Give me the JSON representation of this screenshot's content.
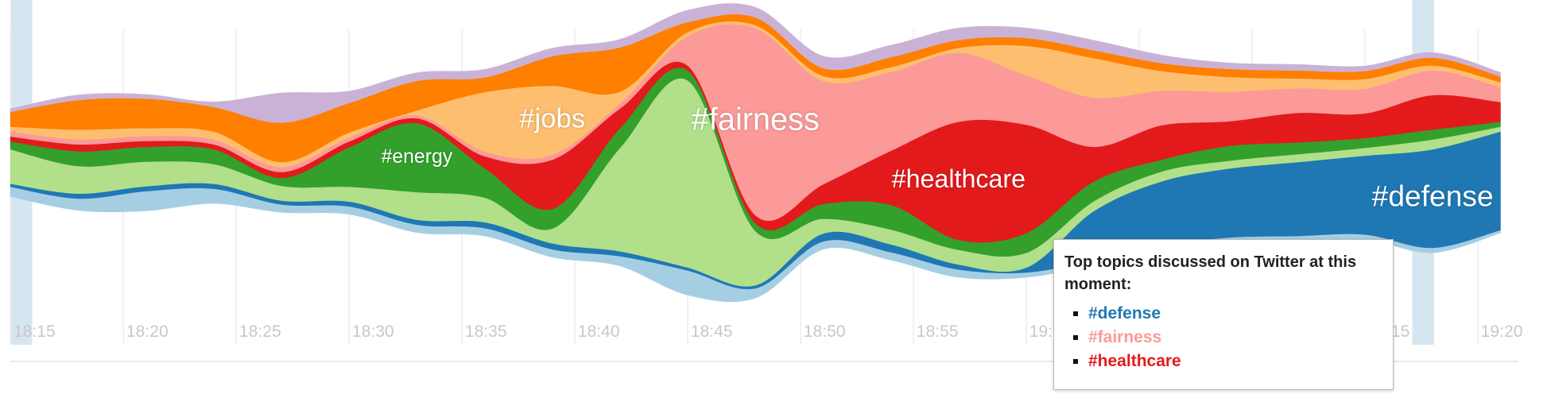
{
  "chart_data": {
    "type": "stream",
    "tooltip_title": "Top topics discussed on Twitter at this moment:",
    "x": [
      "18:15",
      "18:18",
      "18:21",
      "18:24",
      "18:27",
      "18:30",
      "18:33",
      "18:36",
      "18:39",
      "18:42",
      "18:45",
      "18:48",
      "18:51",
      "18:54",
      "18:57",
      "19:00",
      "19:03",
      "19:06",
      "19:09",
      "19:12",
      "19:15",
      "19:18",
      "19:21"
    ],
    "xticks": [
      "18:15",
      "18:20",
      "18:25",
      "18:30",
      "18:35",
      "18:40",
      "18:45",
      "18:50",
      "18:55",
      "19:00",
      "19:05",
      "19:10",
      "19:15",
      "19:20"
    ],
    "grid": true,
    "series": [
      {
        "color": "#a6cee3",
        "values": [
          10,
          12,
          20,
          15,
          8,
          8,
          8,
          8,
          8,
          10,
          25,
          10,
          8,
          8,
          8,
          5,
          5,
          5,
          5,
          5,
          5,
          5,
          3
        ]
      },
      {
        "name": "#defense",
        "color": "#1f78b4",
        "values": [
          3,
          5,
          5,
          5,
          4,
          5,
          5,
          6,
          6,
          5,
          3,
          3,
          8,
          8,
          5,
          5,
          50,
          65,
          70,
          75,
          80,
          100,
          100
        ]
      },
      {
        "color": "#b2df8a",
        "values": [
          35,
          28,
          25,
          20,
          15,
          15,
          28,
          25,
          15,
          105,
          190,
          55,
          15,
          15,
          15,
          15,
          10,
          10,
          8,
          8,
          8,
          10,
          5
        ]
      },
      {
        "name": "#energy",
        "color": "#33a02c",
        "values": [
          8,
          15,
          15,
          15,
          8,
          40,
          70,
          30,
          20,
          20,
          10,
          8,
          15,
          25,
          10,
          20,
          20,
          12,
          15,
          12,
          10,
          10,
          5
        ]
      },
      {
        "name": "#healthcare",
        "color": "#e31a1c",
        "values": [
          5,
          7,
          6,
          5,
          6,
          6,
          5,
          12,
          50,
          20,
          5,
          8,
          20,
          55,
          120,
          110,
          35,
          35,
          25,
          30,
          25,
          35,
          20
        ]
      },
      {
        "name": "#fairness",
        "color": "#fb9a99",
        "values": [
          5,
          5,
          5,
          5,
          5,
          4,
          3,
          5,
          5,
          5,
          30,
          190,
          105,
          80,
          70,
          50,
          50,
          35,
          30,
          25,
          25,
          25,
          15
        ]
      },
      {
        "name": "#jobs",
        "color": "#fdbf6f",
        "values": [
          5,
          10,
          8,
          8,
          5,
          5,
          5,
          60,
          70,
          12,
          4,
          3,
          5,
          5,
          5,
          30,
          40,
          20,
          15,
          10,
          10,
          5,
          5
        ]
      },
      {
        "color": "#ff7f00",
        "values": [
          15,
          30,
          30,
          25,
          40,
          30,
          30,
          15,
          30,
          45,
          10,
          8,
          8,
          10,
          8,
          8,
          8,
          8,
          8,
          8,
          8,
          8,
          6
        ]
      },
      {
        "color": "#cab2d6",
        "values": [
          3,
          5,
          4,
          5,
          30,
          12,
          8,
          8,
          8,
          8,
          12,
          10,
          12,
          12,
          12,
          10,
          10,
          8,
          6,
          6,
          5,
          5,
          4
        ]
      }
    ]
  }
}
